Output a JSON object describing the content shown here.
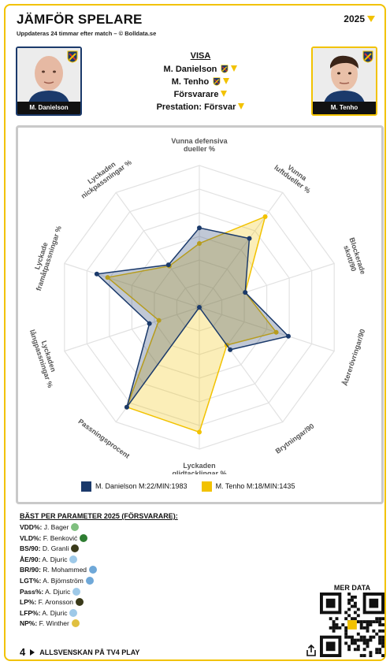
{
  "header": {
    "title": "JÄMFÖR SPELARE",
    "subtitle": "Uppdateras 24 timmar efter match – © Bolldata.se",
    "season": "2025"
  },
  "players": [
    {
      "name": "M. Danielson",
      "color": "#1b3a6b"
    },
    {
      "name": "M. Tenho",
      "color": "#f2c200"
    }
  ],
  "visa": {
    "heading": "VISA",
    "player1": "M. Danielson",
    "player2": "M. Tenho",
    "position": "Försvarare",
    "performance": "Prestation: Försvar"
  },
  "chart_data": {
    "type": "radar",
    "axes": [
      "Vunna defensiva dueller %",
      "Vunna luftdueller %",
      "Blockerade skott/90",
      "Återerövringar/90",
      "Brytningar/90",
      "Lyckaden glidtacklingar %",
      "Passningsprocent",
      "Lyckaden långpassningar %",
      "Lyckade framåtpassningar %",
      "Lyckaden nickpassningar %"
    ],
    "range": [
      0,
      1
    ],
    "series": [
      {
        "name": "M. Danielson M:22/MIN:1983",
        "color": "#1b3a6b",
        "values": [
          0.56,
          0.6,
          0.34,
          0.66,
          0.37,
          0.0,
          0.87,
          0.37,
          0.76,
          0.37
        ]
      },
      {
        "name": "M. Tenho M:18/MIN:1435",
        "color": "#f2c200",
        "values": [
          0.45,
          0.79,
          0.34,
          0.57,
          0.33,
          0.88,
          0.87,
          0.3,
          0.68,
          0.36
        ]
      }
    ]
  },
  "best": {
    "heading": "BÄST PER PARAMETER 2025 (FÖRSVARARE):",
    "rows": [
      {
        "key": "VDD%:",
        "player": "J. Bager",
        "color": "#7fbf7f"
      },
      {
        "key": "VLD%:",
        "player": "F. Benković",
        "color": "#2e7d32"
      },
      {
        "key": "BS/90:",
        "player": "D. Granli",
        "color": "#3a3a1a"
      },
      {
        "key": "ÅE/90:",
        "player": "A. Djuric",
        "color": "#9ec9e8"
      },
      {
        "key": "BR/90:",
        "player": "R. Mohammed",
        "color": "#6fa8d8"
      },
      {
        "key": "LGT%:",
        "player": "A. Björnström",
        "color": "#6fa8d8"
      },
      {
        "key": "Pass%:",
        "player": "A. Djuric",
        "color": "#9ec9e8"
      },
      {
        "key": "LP%:",
        "player": "F. Aronsson",
        "color": "#3a3a1a"
      },
      {
        "key": "LFP%:",
        "player": "A. Djuric",
        "color": "#9ec9e8"
      },
      {
        "key": "NP%:",
        "player": "F. Winther",
        "color": "#e0c040"
      }
    ]
  },
  "more_data": "MER DATA",
  "footer": {
    "logo": "4",
    "text": "ALLSVENSKAN PÅ TV4 PLAY"
  }
}
